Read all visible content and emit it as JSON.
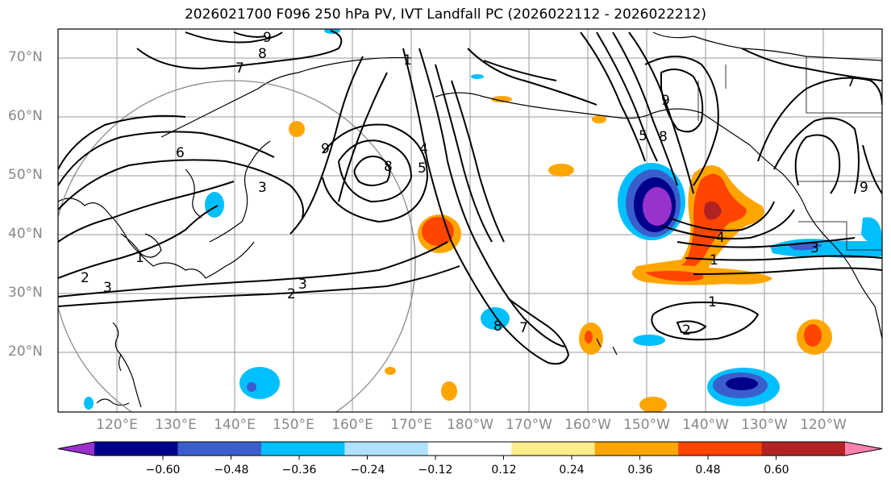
{
  "title": "2026021700 F096 250 hPa PV, IVT Landfall PC (2026022112 - 2026022212)",
  "lat_labels": [
    "70°N",
    "60°N",
    "50°N",
    "40°N",
    "30°N",
    "20°N"
  ],
  "lon_labels": [
    "120°E",
    "130°E",
    "140°E",
    "150°E",
    "160°E",
    "170°E",
    "180°W",
    "170°W",
    "160°W",
    "150°W",
    "140°W",
    "130°W",
    "120°W"
  ],
  "colorbar": {
    "colors": [
      "#9932cc",
      "#00008b",
      "#3a5fcd",
      "#00bfff",
      "#b0e2ff",
      "#ffffff",
      "#ffec8b",
      "#ffa500",
      "#ff4500",
      "#b22222",
      "#ff82ab"
    ],
    "tick_labels": [
      "−0.60",
      "−0.48",
      "−0.36",
      "−0.24",
      "−0.12",
      "0.12",
      "0.24",
      "0.36",
      "0.48",
      "0.60"
    ]
  },
  "contour_labels": [
    "9",
    "8",
    "7",
    "6",
    "3",
    "1",
    "2",
    "3",
    "2",
    "3",
    "9",
    "8",
    "5",
    "4",
    "1",
    "8",
    "9",
    "8",
    "5",
    "7",
    "3",
    "7",
    "9",
    "4",
    "1",
    "1",
    "2"
  ]
}
